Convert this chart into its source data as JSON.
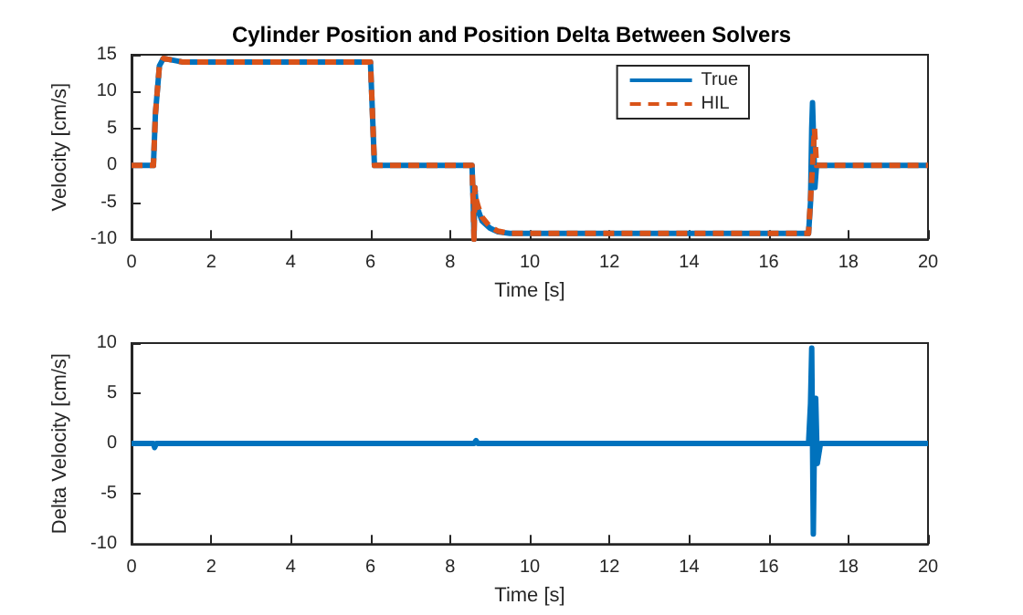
{
  "chart_data": [
    {
      "type": "line",
      "title": "Cylinder Position and Position Delta Between Solvers",
      "xlabel": "Time [s]",
      "ylabel": "Velocity [cm/s]",
      "xlim": [
        0,
        20
      ],
      "xticks": [
        0,
        2,
        4,
        6,
        8,
        10,
        12,
        14,
        16,
        18,
        20
      ],
      "ylim": [
        -10,
        15
      ],
      "yticks": [
        -10,
        -5,
        0,
        5,
        10,
        15
      ],
      "grid": false,
      "legend": "top right",
      "marker": "none",
      "series": [
        {
          "name": "True",
          "color": "#0072bd",
          "line_style": "solid",
          "x": [
            0,
            0.55,
            0.6,
            0.7,
            0.8,
            1.0,
            1.3,
            2,
            6.0,
            6.1,
            6.15,
            8.55,
            8.58,
            8.6,
            8.62,
            8.65,
            8.7,
            8.8,
            9.0,
            9.2,
            9.5,
            9.7,
            17.0,
            17.05,
            17.08,
            17.1,
            17.13,
            17.16,
            17.2,
            17.25,
            20
          ],
          "values": [
            0,
            0,
            7,
            13.5,
            14.5,
            14.3,
            14,
            14,
            14,
            0,
            0,
            0,
            -5,
            -10,
            -3,
            -5,
            -6,
            -7.5,
            -8.5,
            -9,
            -9.2,
            -9.2,
            -9.2,
            -5,
            5,
            8.5,
            3,
            -3,
            0,
            0,
            0
          ]
        },
        {
          "name": "HIL",
          "color": "#d95319",
          "line_style": "dashed",
          "x": [
            0,
            0.55,
            0.6,
            0.7,
            0.8,
            1.0,
            1.3,
            2,
            6.0,
            6.1,
            6.15,
            8.55,
            8.58,
            8.6,
            8.62,
            8.65,
            8.7,
            8.8,
            9.0,
            9.2,
            9.5,
            9.7,
            17.0,
            17.1,
            17.15,
            17.2,
            17.25,
            20
          ],
          "values": [
            0,
            0,
            7,
            13.5,
            14.5,
            14.3,
            14,
            14,
            14,
            0,
            0,
            0,
            -5,
            -10,
            -3,
            -4.5,
            -5.5,
            -7,
            -8.3,
            -8.9,
            -9.2,
            -9.2,
            -9.2,
            0,
            5,
            0,
            0,
            0
          ]
        }
      ]
    },
    {
      "type": "line",
      "xlabel": "Time [s]",
      "ylabel": "Delta Velocity [cm/s]",
      "xlim": [
        0,
        20
      ],
      "xticks": [
        0,
        2,
        4,
        6,
        8,
        10,
        12,
        14,
        16,
        18,
        20
      ],
      "ylim": [
        -10,
        10
      ],
      "yticks": [
        -10,
        -5,
        0,
        5,
        10
      ],
      "grid": false,
      "legend": false,
      "marker": "none",
      "series": [
        {
          "color": "#0072bd",
          "line_style": "solid",
          "x": [
            0,
            0.55,
            0.58,
            0.62,
            8.6,
            8.65,
            8.7,
            17.0,
            17.05,
            17.08,
            17.12,
            17.15,
            17.18,
            17.22,
            17.3,
            20
          ],
          "values": [
            0,
            0,
            -0.4,
            0,
            0,
            0.3,
            0,
            0,
            4,
            9.5,
            -9,
            1,
            4.5,
            -2,
            0,
            0
          ]
        }
      ]
    }
  ]
}
